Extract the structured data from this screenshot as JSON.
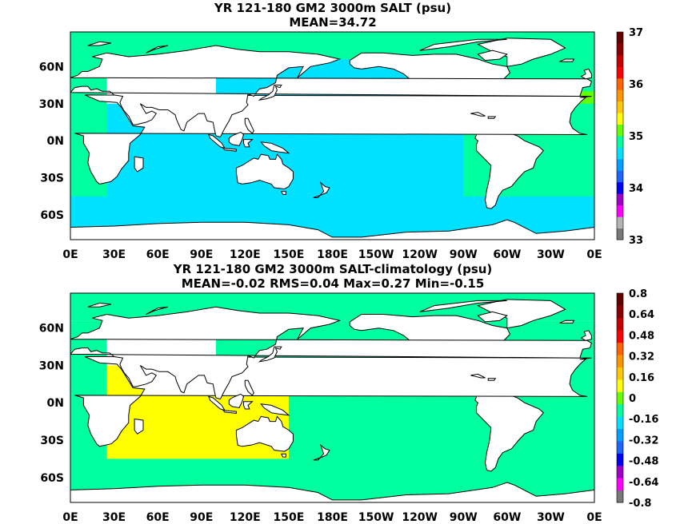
{
  "chart_data": [
    {
      "type": "heatmap",
      "title": "YR 121-180 GM2 3000m SALT (psu)",
      "subtitle": "MEAN=34.72",
      "x_tick_labels": [
        "0E",
        "30E",
        "60E",
        "90E",
        "120E",
        "150E",
        "180E",
        "150W",
        "120W",
        "90W",
        "60W",
        "30W",
        "0E"
      ],
      "y_tick_labels": [
        "60N",
        "30N",
        "0N",
        "30S",
        "60S"
      ],
      "y_tick_values": [
        60,
        30,
        0,
        -30,
        -60
      ],
      "xlim": [
        0,
        360
      ],
      "ylim": [
        -80,
        88
      ],
      "colorbar": {
        "range": [
          33,
          37
        ],
        "tick_labels": [
          "33",
          "34",
          "35",
          "36",
          "37"
        ],
        "tick_values": [
          33,
          34,
          35,
          36,
          37
        ],
        "colors": [
          "#787878",
          "#b4b4b4",
          "#ff00ff",
          "#a000c8",
          "#0000ff",
          "#1e64ff",
          "#00a0ff",
          "#00e1ff",
          "#00ff9f",
          "#64ff00",
          "#ffff00",
          "#ffc800",
          "#ff9600",
          "#ff6400",
          "#ff0000",
          "#c80000",
          "#8c0000",
          "#640000"
        ]
      },
      "ocean_values": {
        "pacific": 34.7,
        "indian": 34.7,
        "southern": 34.7,
        "atlantic": 34.9,
        "arctic": 34.9,
        "med_outflow": 35.1
      }
    },
    {
      "type": "heatmap",
      "title": "YR 121-180 GM2 3000m SALT-climatology (psu)",
      "subtitle": "MEAN=-0.02   RMS=0.04   Max=0.27   Min=-0.15",
      "x_tick_labels": [
        "0E",
        "30E",
        "60E",
        "90E",
        "120E",
        "150E",
        "180E",
        "150W",
        "120W",
        "90W",
        "60W",
        "30W",
        "0E"
      ],
      "y_tick_labels": [
        "60N",
        "30N",
        "0N",
        "30S",
        "60S"
      ],
      "y_tick_values": [
        60,
        30,
        0,
        -30,
        -60
      ],
      "xlim": [
        0,
        360
      ],
      "ylim": [
        -80,
        88
      ],
      "colorbar": {
        "range": [
          -0.8,
          0.8
        ],
        "tick_labels": [
          "-0.8",
          "-0.64",
          "-0.48",
          "-0.32",
          "-0.16",
          "0",
          "0.16",
          "0.32",
          "0.48",
          "0.64",
          "0.8"
        ],
        "tick_values": [
          -0.8,
          -0.64,
          -0.48,
          -0.32,
          -0.16,
          0,
          0.16,
          0.32,
          0.48,
          0.64,
          0.8
        ],
        "colors": [
          "#787878",
          "#ff00ff",
          "#a000c8",
          "#0000ff",
          "#1e64ff",
          "#00a0ff",
          "#00e1ff",
          "#00ff9f",
          "#64ff00",
          "#ffff00",
          "#ffc800",
          "#ff9600",
          "#ff6400",
          "#ff0000",
          "#c80000",
          "#8c0000",
          "#640000"
        ]
      },
      "ocean_values": {
        "pacific": -0.05,
        "indian": 0.05,
        "southern": -0.05,
        "atlantic": -0.05,
        "arctic": -0.05,
        "south_atlantic": -0.1
      }
    }
  ]
}
